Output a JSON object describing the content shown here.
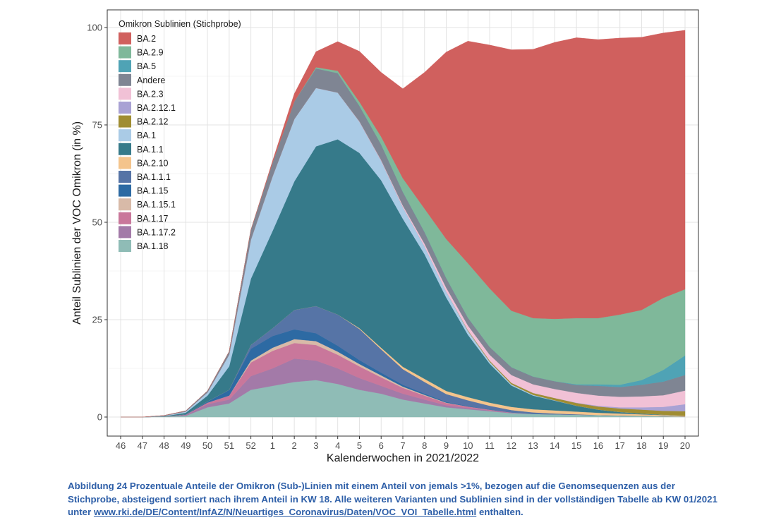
{
  "chart_data": {
    "type": "area",
    "stacked": true,
    "xlabel": "Kalenderwochen in 2021/2022",
    "ylabel": "Anteil Sublinien der VOC Omikron (in %)",
    "ylim": [
      0,
      100
    ],
    "yticks": [
      0,
      25,
      50,
      75,
      100
    ],
    "grid": true,
    "legend_title": "Omikron Sublinien (Stichprobe)",
    "legend_position": "top-left",
    "categories": [
      "46",
      "47",
      "48",
      "49",
      "50",
      "51",
      "52",
      "1",
      "2",
      "3",
      "4",
      "5",
      "6",
      "7",
      "8",
      "9",
      "10",
      "11",
      "12",
      "13",
      "14",
      "15",
      "16",
      "17",
      "18",
      "19",
      "20"
    ],
    "series": [
      {
        "name": "BA.2",
        "color": "#d0605e",
        "values": [
          0,
          0,
          0,
          0,
          0,
          0,
          0,
          0.5,
          2,
          4,
          7.5,
          13,
          16.5,
          23,
          35,
          48,
          57,
          62.5,
          67,
          69,
          71,
          72,
          71.5,
          71,
          70,
          68,
          66.5
        ]
      },
      {
        "name": "BA.2.9",
        "color": "#7fb89a",
        "values": [
          0,
          0,
          0,
          0,
          0,
          0,
          0,
          0,
          0,
          0.3,
          0.6,
          1,
          2,
          3.5,
          6,
          10,
          14,
          15,
          14.5,
          15,
          16,
          17,
          17,
          18,
          18,
          18.5,
          17
        ]
      },
      {
        "name": "BA.5",
        "color": "#4fa3b5",
        "values": [
          0,
          0,
          0,
          0,
          0,
          0,
          0,
          0,
          0,
          0,
          0,
          0,
          0,
          0,
          0,
          0,
          0,
          0,
          0,
          0,
          0,
          0.2,
          0.4,
          0.6,
          1.2,
          3,
          5
        ]
      },
      {
        "name": "Andere",
        "color": "#7f8593",
        "values": [
          0,
          0,
          0.1,
          0.2,
          0.4,
          0.8,
          2.5,
          3.5,
          4.5,
          5,
          5,
          4,
          4,
          3.5,
          3,
          2.5,
          2,
          2,
          2,
          2,
          2,
          2,
          2.5,
          2.5,
          3,
          3.5,
          4
        ]
      },
      {
        "name": "BA.2.3",
        "color": "#f1c1d6",
        "values": [
          0,
          0,
          0,
          0,
          0,
          0,
          0,
          0,
          0,
          0,
          0,
          0.1,
          0.2,
          0.4,
          0.7,
          1,
          1.2,
          1.5,
          2,
          2.2,
          2.3,
          2.5,
          2.6,
          2.7,
          2.8,
          3,
          3.5
        ]
      },
      {
        "name": "BA.2.12.1",
        "color": "#a9a2d4",
        "values": [
          0,
          0,
          0,
          0,
          0,
          0,
          0,
          0,
          0,
          0,
          0,
          0,
          0,
          0,
          0,
          0,
          0,
          0,
          0,
          0,
          0,
          0.1,
          0.2,
          0.3,
          0.6,
          1,
          1.8
        ]
      },
      {
        "name": "BA.2.12",
        "color": "#a08d32",
        "values": [
          0,
          0,
          0,
          0,
          0,
          0,
          0,
          0,
          0,
          0,
          0,
          0,
          0,
          0,
          0,
          0,
          0.2,
          0.3,
          0.4,
          0.5,
          0.6,
          0.7,
          0.8,
          0.9,
          1,
          1,
          1.2
        ]
      },
      {
        "name": "BA.1",
        "color": "#aacbe6",
        "values": [
          0,
          0,
          0.1,
          0.3,
          0.8,
          3,
          10,
          14,
          16,
          15,
          12,
          8,
          5,
          3,
          2,
          1.5,
          1,
          0.5,
          0.3,
          0.2,
          0.1,
          0,
          0,
          0,
          0,
          0,
          0
        ]
      },
      {
        "name": "BA.1.1",
        "color": "#367a8a",
        "values": [
          0,
          0,
          0.1,
          0.4,
          1.5,
          6,
          17,
          25,
          33,
          41,
          45,
          45,
          43,
          38,
          32,
          24,
          16,
          10,
          5.5,
          3.5,
          2.5,
          1.5,
          0.8,
          0.4,
          0.2,
          0.1,
          0
        ]
      },
      {
        "name": "BA.2.10",
        "color": "#f4c48c",
        "values": [
          0,
          0,
          0,
          0,
          0,
          0,
          0,
          0,
          0,
          0,
          0,
          0.2,
          0.4,
          0.6,
          0.8,
          0.8,
          0.8,
          0.8,
          0.8,
          0.8,
          0.8,
          0.7,
          0.6,
          0.5,
          0.4,
          0.3,
          0.2
        ]
      },
      {
        "name": "BA.1.1.1",
        "color": "#5674a6",
        "values": [
          0,
          0,
          0,
          0,
          0,
          0,
          1,
          2,
          5,
          7,
          8,
          8,
          6,
          4,
          3,
          2,
          1.5,
          1,
          0.6,
          0.4,
          0.2,
          0.1,
          0,
          0,
          0,
          0,
          0
        ]
      },
      {
        "name": "BA.1.15",
        "color": "#2d6aa3",
        "values": [
          0,
          0,
          0,
          0.1,
          0.3,
          1.5,
          3,
          3,
          2.5,
          2,
          1.5,
          1,
          0.7,
          0.5,
          0.3,
          0.2,
          0.1,
          0,
          0,
          0,
          0,
          0,
          0,
          0,
          0,
          0,
          0
        ]
      },
      {
        "name": "BA.1.15.1",
        "color": "#d8baa8",
        "values": [
          0,
          0,
          0,
          0,
          0,
          0,
          0.5,
          0.8,
          1,
          1,
          0.8,
          0.6,
          0.5,
          0.3,
          0.2,
          0.1,
          0,
          0,
          0,
          0,
          0,
          0,
          0,
          0,
          0,
          0,
          0
        ]
      },
      {
        "name": "BA.1.17",
        "color": "#c9779b",
        "values": [
          0,
          0,
          0,
          0.1,
          0.4,
          1,
          3.5,
          4.5,
          4,
          4,
          3.5,
          3,
          2.2,
          1.5,
          1,
          0.6,
          0.4,
          0.2,
          0.1,
          0,
          0,
          0,
          0,
          0,
          0,
          0,
          0
        ]
      },
      {
        "name": "BA.1.17.2",
        "color": "#a37aa8",
        "values": [
          0,
          0,
          0,
          0.2,
          0.8,
          1,
          3.5,
          4.5,
          6,
          5,
          4,
          3,
          2,
          1.5,
          1,
          0.5,
          0.3,
          0.2,
          0.1,
          0,
          0,
          0,
          0,
          0,
          0,
          0,
          0
        ]
      },
      {
        "name": "BA.1.18",
        "color": "#8fbcb6",
        "values": [
          0,
          0,
          0.1,
          0.3,
          2.5,
          3.5,
          7,
          8,
          9,
          9.5,
          8.5,
          7,
          6,
          4.5,
          3.5,
          2.5,
          2,
          1.5,
          1,
          0.8,
          0.7,
          0.6,
          0.5,
          0.4,
          0.3,
          0.2,
          0.1
        ]
      }
    ]
  },
  "caption": {
    "text": "Abbildung 24 Prozentuale Anteile der Omikron (Sub-)Linien mit einem Anteil von jemals >1%, bezogen auf die Genomsequenzen aus der Stichprobe, absteigend sortiert nach ihrem Anteil in KW 18. Alle weiteren Varianten und Sublinien sind in der vollständigen Tabelle ab KW 01/2021 unter ",
    "link": "www.rki.de/DE/Content/InfAZ/N/Neuartiges_Coronavirus/Daten/VOC_VOI_Tabelle.html",
    "suffix": " enthalten."
  }
}
